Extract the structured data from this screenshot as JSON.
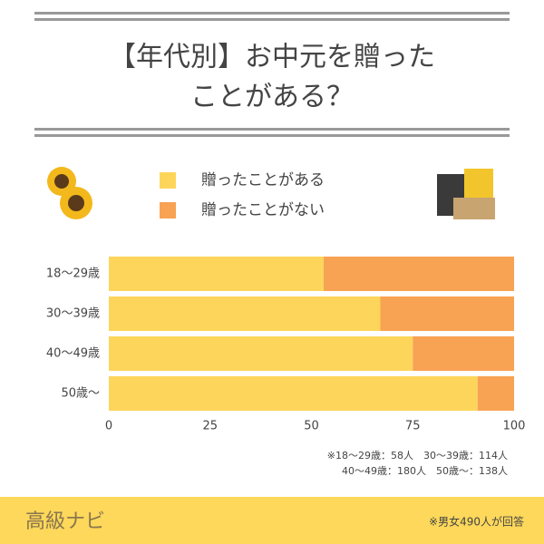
{
  "chart_data": {
    "type": "stacked-barh",
    "title": [
      "【年代別】お中元を贈った",
      "ことがある？"
    ],
    "categories": [
      "18〜29歳",
      "30〜39歳",
      "40〜49歳",
      "50歳〜"
    ],
    "series": [
      {
        "name": "贈ったことがある",
        "color": "#fdd55a",
        "values": [
          53,
          67,
          75,
          91
        ]
      },
      {
        "name": "贈ったことがない",
        "color": "#f8a253",
        "values": [
          47,
          33,
          25,
          9
        ]
      }
    ],
    "xlim": [
      0,
      100
    ],
    "xticks": [
      0,
      25,
      50,
      75,
      100
    ],
    "grid": false,
    "notes": [
      "※18〜29歳：58人　30〜39歳：114人",
      "40〜49歳：180人　50歳〜：138人"
    ]
  },
  "footer": {
    "brand": "高級ナビ",
    "note": "※男女490人が回答"
  }
}
